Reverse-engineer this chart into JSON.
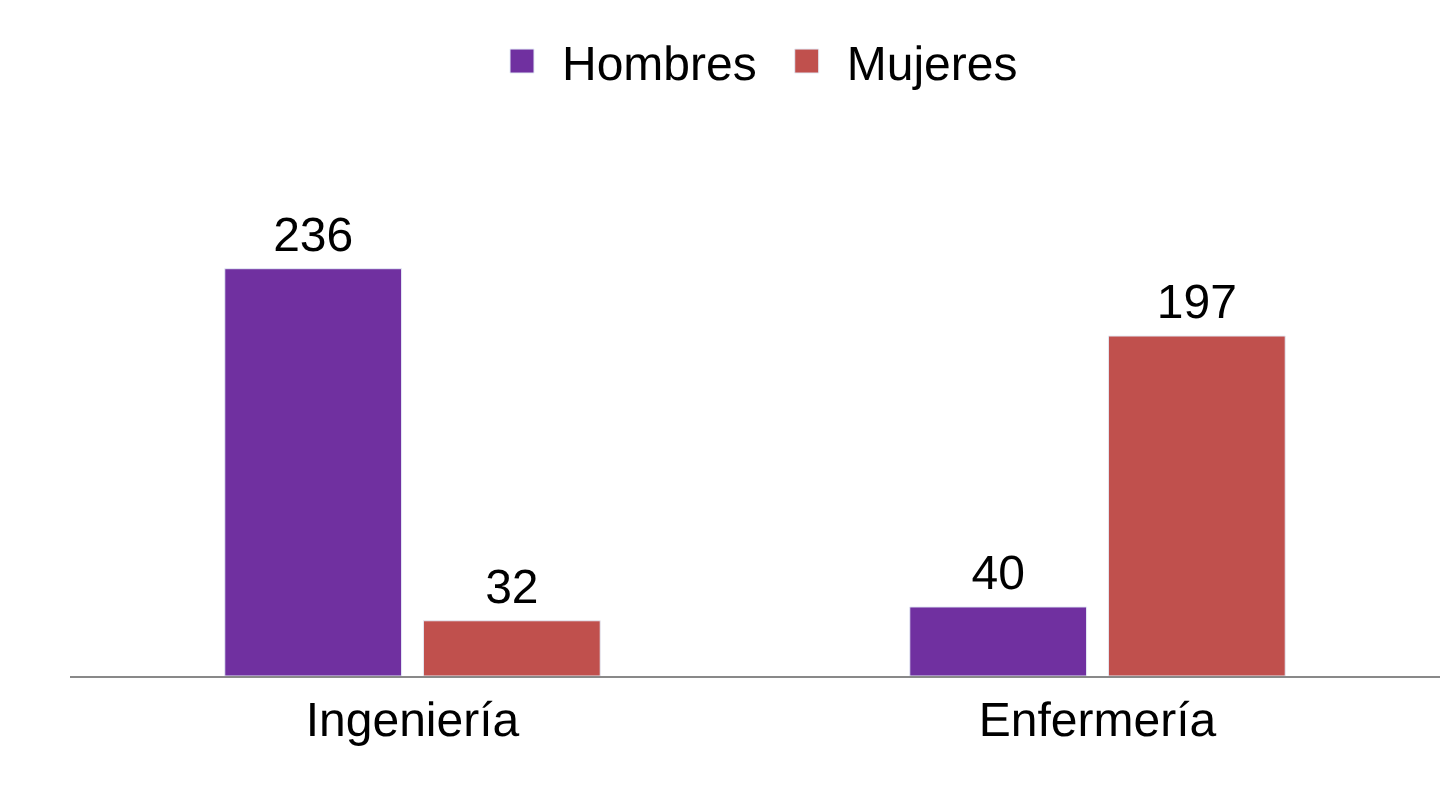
{
  "chart_data": {
    "type": "bar",
    "categories": [
      "Ingeniería",
      "Enfermería"
    ],
    "series": [
      {
        "name": "Hombres",
        "color": "#7030a0",
        "values": [
          236,
          40
        ]
      },
      {
        "name": "Mujeres",
        "color": "#c0504d",
        "values": [
          32,
          197
        ]
      }
    ],
    "data_labels": true,
    "legend": "top"
  }
}
